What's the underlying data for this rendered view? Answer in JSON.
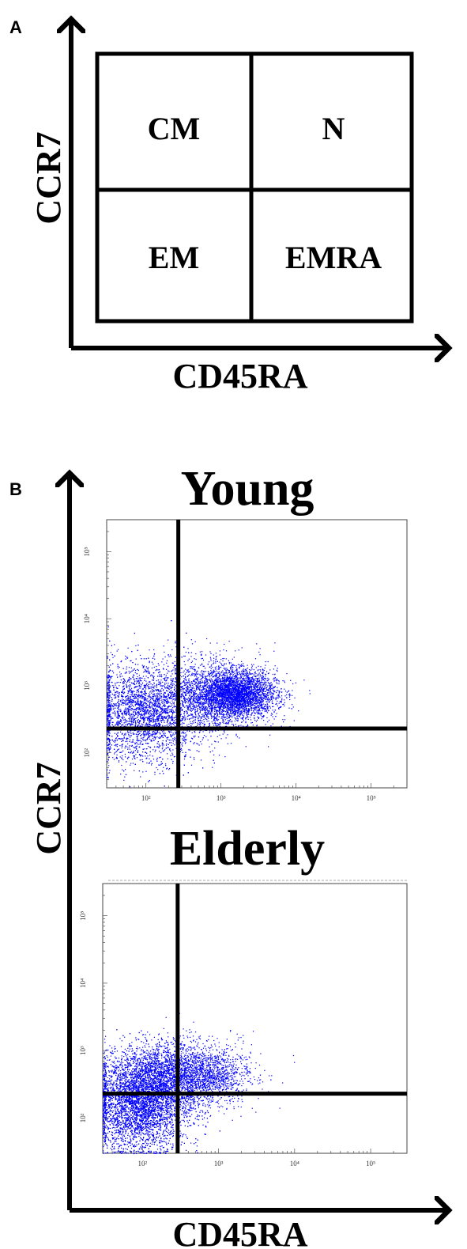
{
  "panel_a": {
    "letter": "A",
    "x_axis_label": "CD45RA",
    "y_axis_label": "CCR7",
    "quadrants": {
      "top_left": "CM",
      "top_right": "N",
      "bottom_left": "EM",
      "bottom_right": "EMRA"
    }
  },
  "panel_b": {
    "letter": "B",
    "x_axis_label": "CD45RA",
    "y_axis_label": "CCR7",
    "dot_color": "#0000ff"
  },
  "chart_data": [
    {
      "type": "scatter",
      "title": "Young",
      "xlabel": "",
      "ylabel": "",
      "x_scale": "log",
      "y_scale": "log",
      "xlim": [
        30,
        300000
      ],
      "ylim": [
        30,
        300000
      ],
      "x_ticks": [
        "10²",
        "10³",
        "10⁴",
        "10⁵"
      ],
      "y_ticks": [
        "10²",
        "10³",
        "10⁴",
        "10⁵"
      ],
      "gate_x": 270,
      "gate_y": 230,
      "clusters": [
        {
          "center_x": 1500,
          "center_y": 750,
          "spread_log_x": 0.28,
          "spread_log_y": 0.18,
          "count": 3800
        },
        {
          "center_x": 100,
          "center_y": 400,
          "spread_log_x": 0.38,
          "spread_log_y": 0.36,
          "count": 3800
        },
        {
          "center_x": 500,
          "center_y": 700,
          "spread_log_x": 0.4,
          "spread_log_y": 0.33,
          "count": 1100
        }
      ]
    },
    {
      "type": "scatter",
      "title": "Elderly",
      "xlabel": "",
      "ylabel": "",
      "x_scale": "log",
      "y_scale": "log",
      "xlim": [
        30,
        300000
      ],
      "ylim": [
        30,
        300000
      ],
      "x_ticks": [
        "10²",
        "10³",
        "10⁴",
        "10⁵"
      ],
      "y_ticks": [
        "10²",
        "10³",
        "10⁴",
        "10⁵"
      ],
      "gate_x": 290,
      "gate_y": 230,
      "clusters": [
        {
          "center_x": 90,
          "center_y": 130,
          "spread_log_x": 0.32,
          "spread_log_y": 0.3,
          "count": 4500
        },
        {
          "center_x": 150,
          "center_y": 400,
          "spread_log_x": 0.35,
          "spread_log_y": 0.25,
          "count": 3200
        },
        {
          "center_x": 700,
          "center_y": 450,
          "spread_log_x": 0.3,
          "spread_log_y": 0.22,
          "count": 1500
        }
      ]
    }
  ]
}
